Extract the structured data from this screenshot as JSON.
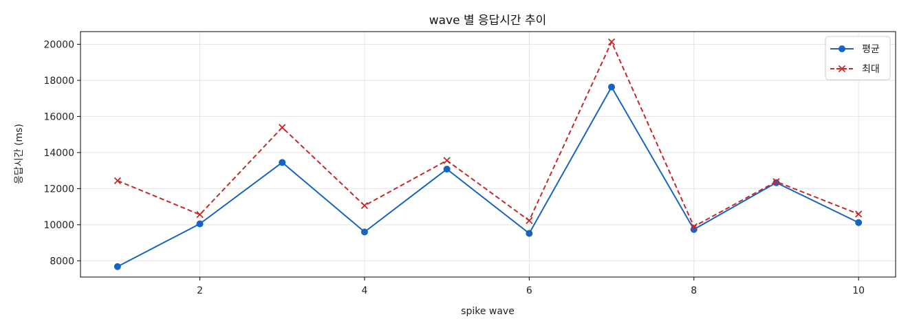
{
  "chart_data": {
    "type": "line",
    "title": "wave 별 응답시간 추이",
    "xlabel": "spike wave",
    "ylabel": "응답시간 (ms)",
    "x": [
      1,
      2,
      3,
      4,
      5,
      6,
      7,
      8,
      9,
      10
    ],
    "xlim": [
      0.55,
      10.45
    ],
    "ylim": [
      7100,
      20700
    ],
    "xticks": [
      2,
      4,
      6,
      8,
      10
    ],
    "yticks": [
      8000,
      10000,
      12000,
      14000,
      16000,
      18000,
      20000
    ],
    "grid": true,
    "legend_position": "top-right",
    "series": [
      {
        "name": "평균",
        "color": "#1565c0",
        "line_style": "solid",
        "marker": "circle",
        "values": [
          7680,
          10050,
          13450,
          9600,
          13080,
          9520,
          17630,
          9740,
          12330,
          10120
        ]
      },
      {
        "name": "최대",
        "color": "#c62828",
        "line_style": "dashed",
        "marker": "x",
        "values": [
          12440,
          10560,
          15390,
          11060,
          13560,
          10230,
          20130,
          9900,
          12390,
          10590
        ]
      }
    ]
  }
}
